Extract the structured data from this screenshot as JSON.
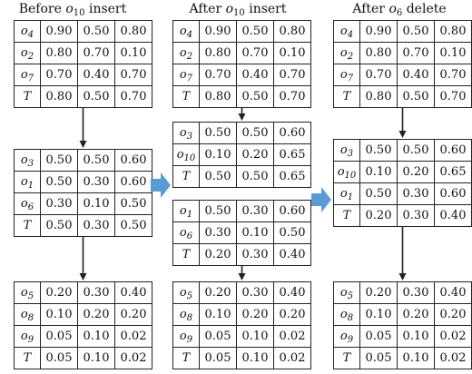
{
  "columns": [
    {
      "title": "Before",
      "title_sub_base": "o",
      "title_sub": "10",
      "title_tail": "insert",
      "nodes": [
        {
          "rows": [
            {
              "key": "o",
              "sub": "4",
              "vals": [
                "0.90",
                "0.50",
                "0.80"
              ]
            },
            {
              "key": "o",
              "sub": "2",
              "vals": [
                "0.80",
                "0.70",
                "0.10"
              ]
            },
            {
              "key": "o",
              "sub": "7",
              "vals": [
                "0.70",
                "0.40",
                "0.70"
              ]
            },
            {
              "key": "T",
              "sub": "",
              "vals": [
                "0.80",
                "0.50",
                "0.70"
              ]
            }
          ]
        },
        {
          "rows": [
            {
              "key": "o",
              "sub": "3",
              "vals": [
                "0.50",
                "0.50",
                "0.60"
              ]
            },
            {
              "key": "o",
              "sub": "1",
              "vals": [
                "0.50",
                "0.30",
                "0.60"
              ]
            },
            {
              "key": "o",
              "sub": "6",
              "vals": [
                "0.30",
                "0.10",
                "0.50"
              ]
            },
            {
              "key": "T",
              "sub": "",
              "vals": [
                "0.50",
                "0.30",
                "0.50"
              ]
            }
          ]
        },
        {
          "rows": [
            {
              "key": "o",
              "sub": "5",
              "vals": [
                "0.20",
                "0.30",
                "0.40"
              ]
            },
            {
              "key": "o",
              "sub": "8",
              "vals": [
                "0.10",
                "0.20",
                "0.20"
              ]
            },
            {
              "key": "o",
              "sub": "9",
              "vals": [
                "0.05",
                "0.10",
                "0.02"
              ]
            },
            {
              "key": "T",
              "sub": "",
              "vals": [
                "0.05",
                "0.10",
                "0.02"
              ]
            }
          ]
        }
      ]
    },
    {
      "title": "After",
      "title_sub_base": "o",
      "title_sub": "10",
      "title_tail": "insert",
      "nodes": [
        {
          "rows": [
            {
              "key": "o",
              "sub": "4",
              "vals": [
                "0.90",
                "0.50",
                "0.80"
              ]
            },
            {
              "key": "o",
              "sub": "2",
              "vals": [
                "0.80",
                "0.70",
                "0.10"
              ]
            },
            {
              "key": "o",
              "sub": "7",
              "vals": [
                "0.70",
                "0.40",
                "0.70"
              ]
            },
            {
              "key": "T",
              "sub": "",
              "vals": [
                "0.80",
                "0.50",
                "0.70"
              ]
            }
          ]
        },
        {
          "rows": [
            {
              "key": "o",
              "sub": "3",
              "vals": [
                "0.50",
                "0.50",
                "0.60"
              ]
            },
            {
              "key": "o",
              "sub": "10",
              "vals": [
                "0.10",
                "0.20",
                "0.65"
              ]
            },
            {
              "key": "T",
              "sub": "",
              "vals": [
                "0.50",
                "0.50",
                "0.65"
              ]
            }
          ]
        },
        {
          "rows": [
            {
              "key": "o",
              "sub": "1",
              "vals": [
                "0.50",
                "0.30",
                "0.60"
              ]
            },
            {
              "key": "o",
              "sub": "6",
              "vals": [
                "0.30",
                "0.10",
                "0.50"
              ]
            },
            {
              "key": "T",
              "sub": "",
              "vals": [
                "0.20",
                "0.30",
                "0.40"
              ]
            }
          ]
        },
        {
          "rows": [
            {
              "key": "o",
              "sub": "5",
              "vals": [
                "0.20",
                "0.30",
                "0.40"
              ]
            },
            {
              "key": "o",
              "sub": "8",
              "vals": [
                "0.10",
                "0.20",
                "0.20"
              ]
            },
            {
              "key": "o",
              "sub": "9",
              "vals": [
                "0.05",
                "0.10",
                "0.02"
              ]
            },
            {
              "key": "T",
              "sub": "",
              "vals": [
                "0.05",
                "0.10",
                "0.02"
              ]
            }
          ]
        }
      ]
    },
    {
      "title": "After",
      "title_sub_base": "o",
      "title_sub": "6",
      "title_tail": "delete",
      "nodes": [
        {
          "rows": [
            {
              "key": "o",
              "sub": "4",
              "vals": [
                "0.90",
                "0.50",
                "0.80"
              ]
            },
            {
              "key": "o",
              "sub": "2",
              "vals": [
                "0.80",
                "0.70",
                "0.10"
              ]
            },
            {
              "key": "o",
              "sub": "7",
              "vals": [
                "0.70",
                "0.40",
                "0.70"
              ]
            },
            {
              "key": "T",
              "sub": "",
              "vals": [
                "0.80",
                "0.50",
                "0.70"
              ]
            }
          ]
        },
        {
          "rows": [
            {
              "key": "o",
              "sub": "3",
              "vals": [
                "0.50",
                "0.50",
                "0.60"
              ]
            },
            {
              "key": "o",
              "sub": "10",
              "vals": [
                "0.10",
                "0.20",
                "0.65"
              ]
            },
            {
              "key": "o",
              "sub": "1",
              "vals": [
                "0.50",
                "0.30",
                "0.60"
              ]
            },
            {
              "key": "T",
              "sub": "",
              "vals": [
                "0.20",
                "0.30",
                "0.40"
              ]
            }
          ]
        },
        {
          "rows": [
            {
              "key": "o",
              "sub": "5",
              "vals": [
                "0.20",
                "0.30",
                "0.40"
              ]
            },
            {
              "key": "o",
              "sub": "8",
              "vals": [
                "0.10",
                "0.20",
                "0.20"
              ]
            },
            {
              "key": "o",
              "sub": "9",
              "vals": [
                "0.05",
                "0.10",
                "0.02"
              ]
            },
            {
              "key": "T",
              "sub": "",
              "vals": [
                "0.05",
                "0.10",
                "0.02"
              ]
            }
          ]
        }
      ]
    }
  ],
  "colors": {
    "flow_arrow": "#5b9bd5",
    "line": "#222222"
  }
}
